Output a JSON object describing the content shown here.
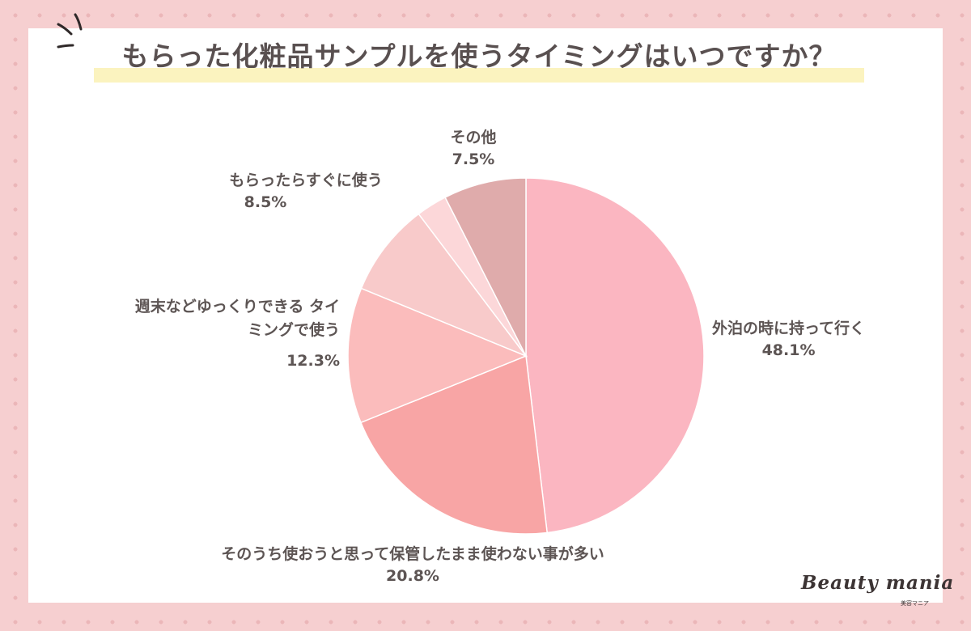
{
  "title": "もらった化粧品サンプルを使うタイミングはいつですか？",
  "logo": {
    "text": "Beauty mania",
    "subtext": "美容マニア"
  },
  "colors": {
    "background": "#f6cfd0",
    "dots": "#ebb6b8",
    "card": "#ffffff",
    "title_highlight": "#fbf3bf",
    "text": "#5d5554"
  },
  "chart_data": {
    "type": "pie",
    "title": "もらった化粧品サンプルを使うタイミングはいつですか？",
    "start_angle": "12 o'clock, clockwise",
    "slices": [
      {
        "label": "外泊の時に持って行く",
        "value": 48.1,
        "value_label": "48.1%",
        "color": "#fbb6c1"
      },
      {
        "label": "そのうち使おうと思って保管したまま使わない事が多い",
        "value": 20.8,
        "value_label": "20.8%",
        "color": "#f8a5a5"
      },
      {
        "label": "週末などゆっくりできる タイミングで使う",
        "value": 12.3,
        "value_label": "12.3%",
        "color": "#fbbcbc"
      },
      {
        "label": "もらったらすぐに使う",
        "value": 8.5,
        "value_label": "8.5%",
        "color": "#f8caca"
      },
      {
        "label": "",
        "value": 2.8,
        "value_label": "",
        "color": "#fcd7d9"
      },
      {
        "label": "その他",
        "value": 7.5,
        "value_label": "7.5%",
        "color": "#dfabab"
      }
    ]
  }
}
